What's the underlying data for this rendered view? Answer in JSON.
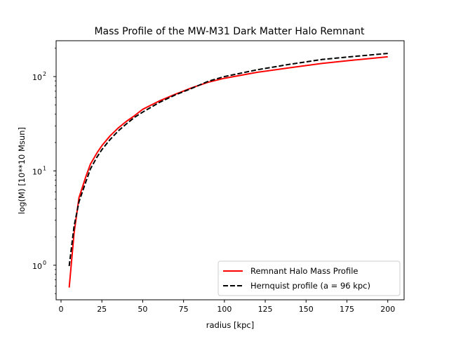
{
  "chart_data": {
    "type": "line",
    "title": "Mass Profile of the MW-M31 Dark Matter Halo Remnant",
    "xlabel": "radius [kpc]",
    "ylabel": "log(M) [10**10 Msun]",
    "xlim": [
      -3,
      210
    ],
    "ylim": [
      0.43,
      240
    ],
    "yscale": "log",
    "grid": false,
    "legend_position": "lower-right",
    "x_ticks": [
      {
        "value": 0,
        "label": "0"
      },
      {
        "value": 25,
        "label": "25"
      },
      {
        "value": 50,
        "label": "50"
      },
      {
        "value": 75,
        "label": "75"
      },
      {
        "value": 100,
        "label": "100"
      },
      {
        "value": 125,
        "label": "125"
      },
      {
        "value": 150,
        "label": "150"
      },
      {
        "value": 175,
        "label": "175"
      },
      {
        "value": 200,
        "label": "200"
      }
    ],
    "y_ticks": [
      {
        "value": 1,
        "base": "10",
        "exp": "0"
      },
      {
        "value": 10,
        "base": "10",
        "exp": "1"
      },
      {
        "value": 100,
        "base": "10",
        "exp": "2"
      }
    ],
    "series": [
      {
        "name": "Remnant Halo Mass Profile",
        "color": "#ff0000",
        "dash": "solid",
        "x": [
          5,
          8,
          11,
          15,
          18,
          22,
          25,
          30,
          35,
          40,
          45,
          50,
          60,
          70,
          80,
          90,
          100,
          120,
          140,
          160,
          180,
          200
        ],
        "y": [
          0.58,
          2.2,
          5.2,
          8.5,
          11.8,
          15.5,
          18.5,
          23.5,
          28.5,
          33.5,
          38.5,
          45,
          55,
          65,
          76,
          87,
          96,
          111,
          124,
          138,
          150,
          162
        ]
      },
      {
        "name": "Hernquist profile (a = 96 kpc)",
        "color": "#000000",
        "dash": "dashed",
        "x": [
          5,
          8,
          11,
          15,
          18,
          22,
          25,
          30,
          35,
          40,
          45,
          50,
          60,
          70,
          80,
          90,
          100,
          120,
          140,
          160,
          180,
          200
        ],
        "y": [
          0.98,
          2.6,
          4.7,
          7.5,
          10.5,
          14,
          16.8,
          21.5,
          26.5,
          31.5,
          37,
          42,
          53,
          64,
          75,
          89,
          100,
          118,
          135,
          152,
          164,
          176
        ]
      }
    ]
  }
}
